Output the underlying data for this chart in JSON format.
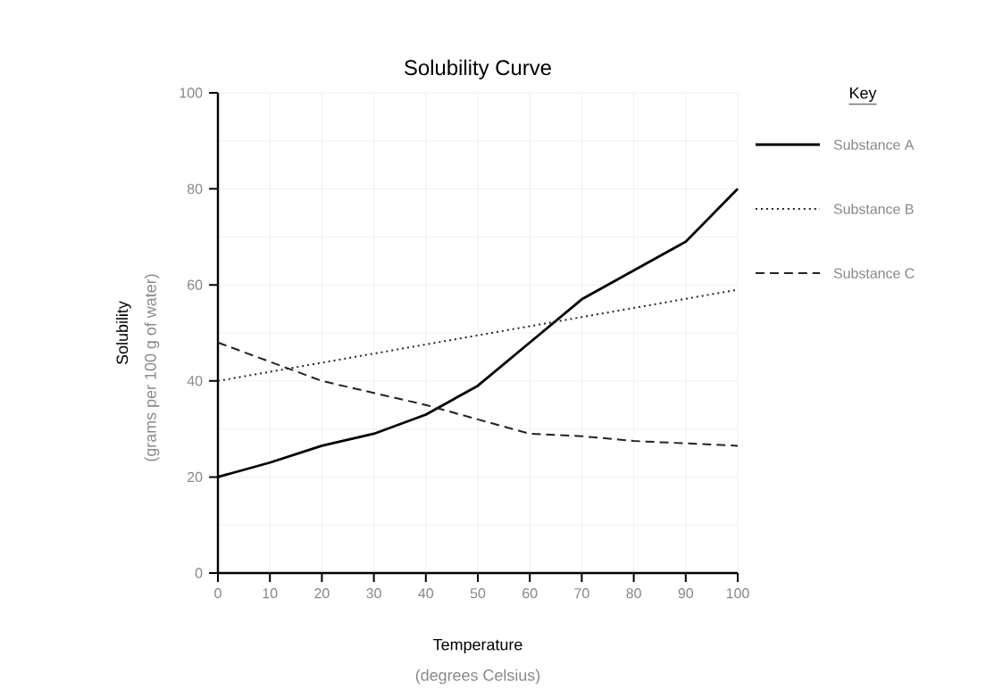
{
  "chart_data": {
    "type": "line",
    "title": "Solubility Curve",
    "xlabel": "Temperature",
    "ylabel": "Solubility",
    "annotations": [
      "(degrees Celsius)",
      "(grams per 100 g of water)"
    ],
    "legend_title": "Key",
    "legend": "right",
    "xlim": [
      0,
      100
    ],
    "ylim": [
      0,
      100
    ],
    "xticks": [
      0,
      10,
      20,
      30,
      40,
      50,
      60,
      70,
      80,
      90,
      100
    ],
    "yticks": [
      0,
      20,
      40,
      60,
      80,
      100
    ],
    "grid": true,
    "series": [
      {
        "name": "Substance A",
        "color": "#000000",
        "line_style": "solid",
        "x": [
          0,
          10,
          20,
          30,
          40,
          50,
          60,
          70,
          80,
          90,
          100
        ],
        "values": [
          20,
          23,
          26.5,
          29,
          33,
          39,
          48,
          57,
          63,
          69,
          80
        ]
      },
      {
        "name": "Substance B",
        "color": "#222222",
        "line_style": "dotted",
        "x": [
          0,
          100
        ],
        "values": [
          40,
          59
        ]
      },
      {
        "name": "Substance C",
        "color": "#222222",
        "line_style": "dashed",
        "x": [
          0,
          10,
          20,
          30,
          40,
          50,
          60,
          70,
          80,
          90,
          100
        ],
        "values": [
          48,
          44,
          40,
          37.5,
          35,
          32,
          29,
          28.5,
          27.5,
          27,
          26.5
        ]
      }
    ]
  }
}
